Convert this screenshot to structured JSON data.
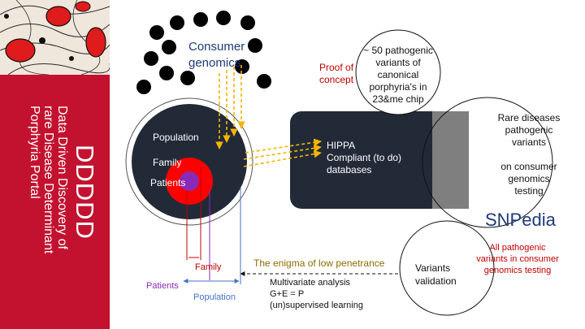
{
  "sidebar": {
    "title": "DDDDD",
    "subtitle_lines": [
      "Data Driven Discovery of",
      "rare Disease Determinant",
      "Porphyria Portal"
    ]
  },
  "consumer_genomics": "Consumer\ngenomics",
  "population_circle": {
    "population": "Population",
    "family": "Family",
    "patients": "Patients"
  },
  "database": "HIPPA\nCompliant (to do)\ndatabases",
  "proof_of_concept": "Proof of\nconcept",
  "chip_variants": "~ 50 pathogenic\nvariants of\ncanonical\nporphyria's in\n23&me chip",
  "rare_diseases": "Rare diseases\npathogenic\nvariants\n\non consumer\ngenomics\ntesting",
  "snpedia": "SNPedia",
  "all_pathogenic": "All pathogenic\nvariants in consumer\ngenomics testing",
  "variants_validation": "Variants\nvalidation",
  "enigma": "The enigma of low penetrance",
  "analysis": "Multivariate analysis\nG+E = P\n(un)supervised learning",
  "brackets": {
    "family": "Family",
    "patients": "Patients",
    "population": "Population"
  },
  "colors": {
    "sidebar": "#c3122f",
    "dark_navy": "#222a38",
    "red": "#ff0000",
    "purple": "#8a2bb8",
    "orange_arrows": "#f5b400",
    "blue": "#4472c4",
    "gray": "#7f7f7f",
    "dark_red": "#c00000",
    "enigma_olive": "#8a6d00"
  }
}
